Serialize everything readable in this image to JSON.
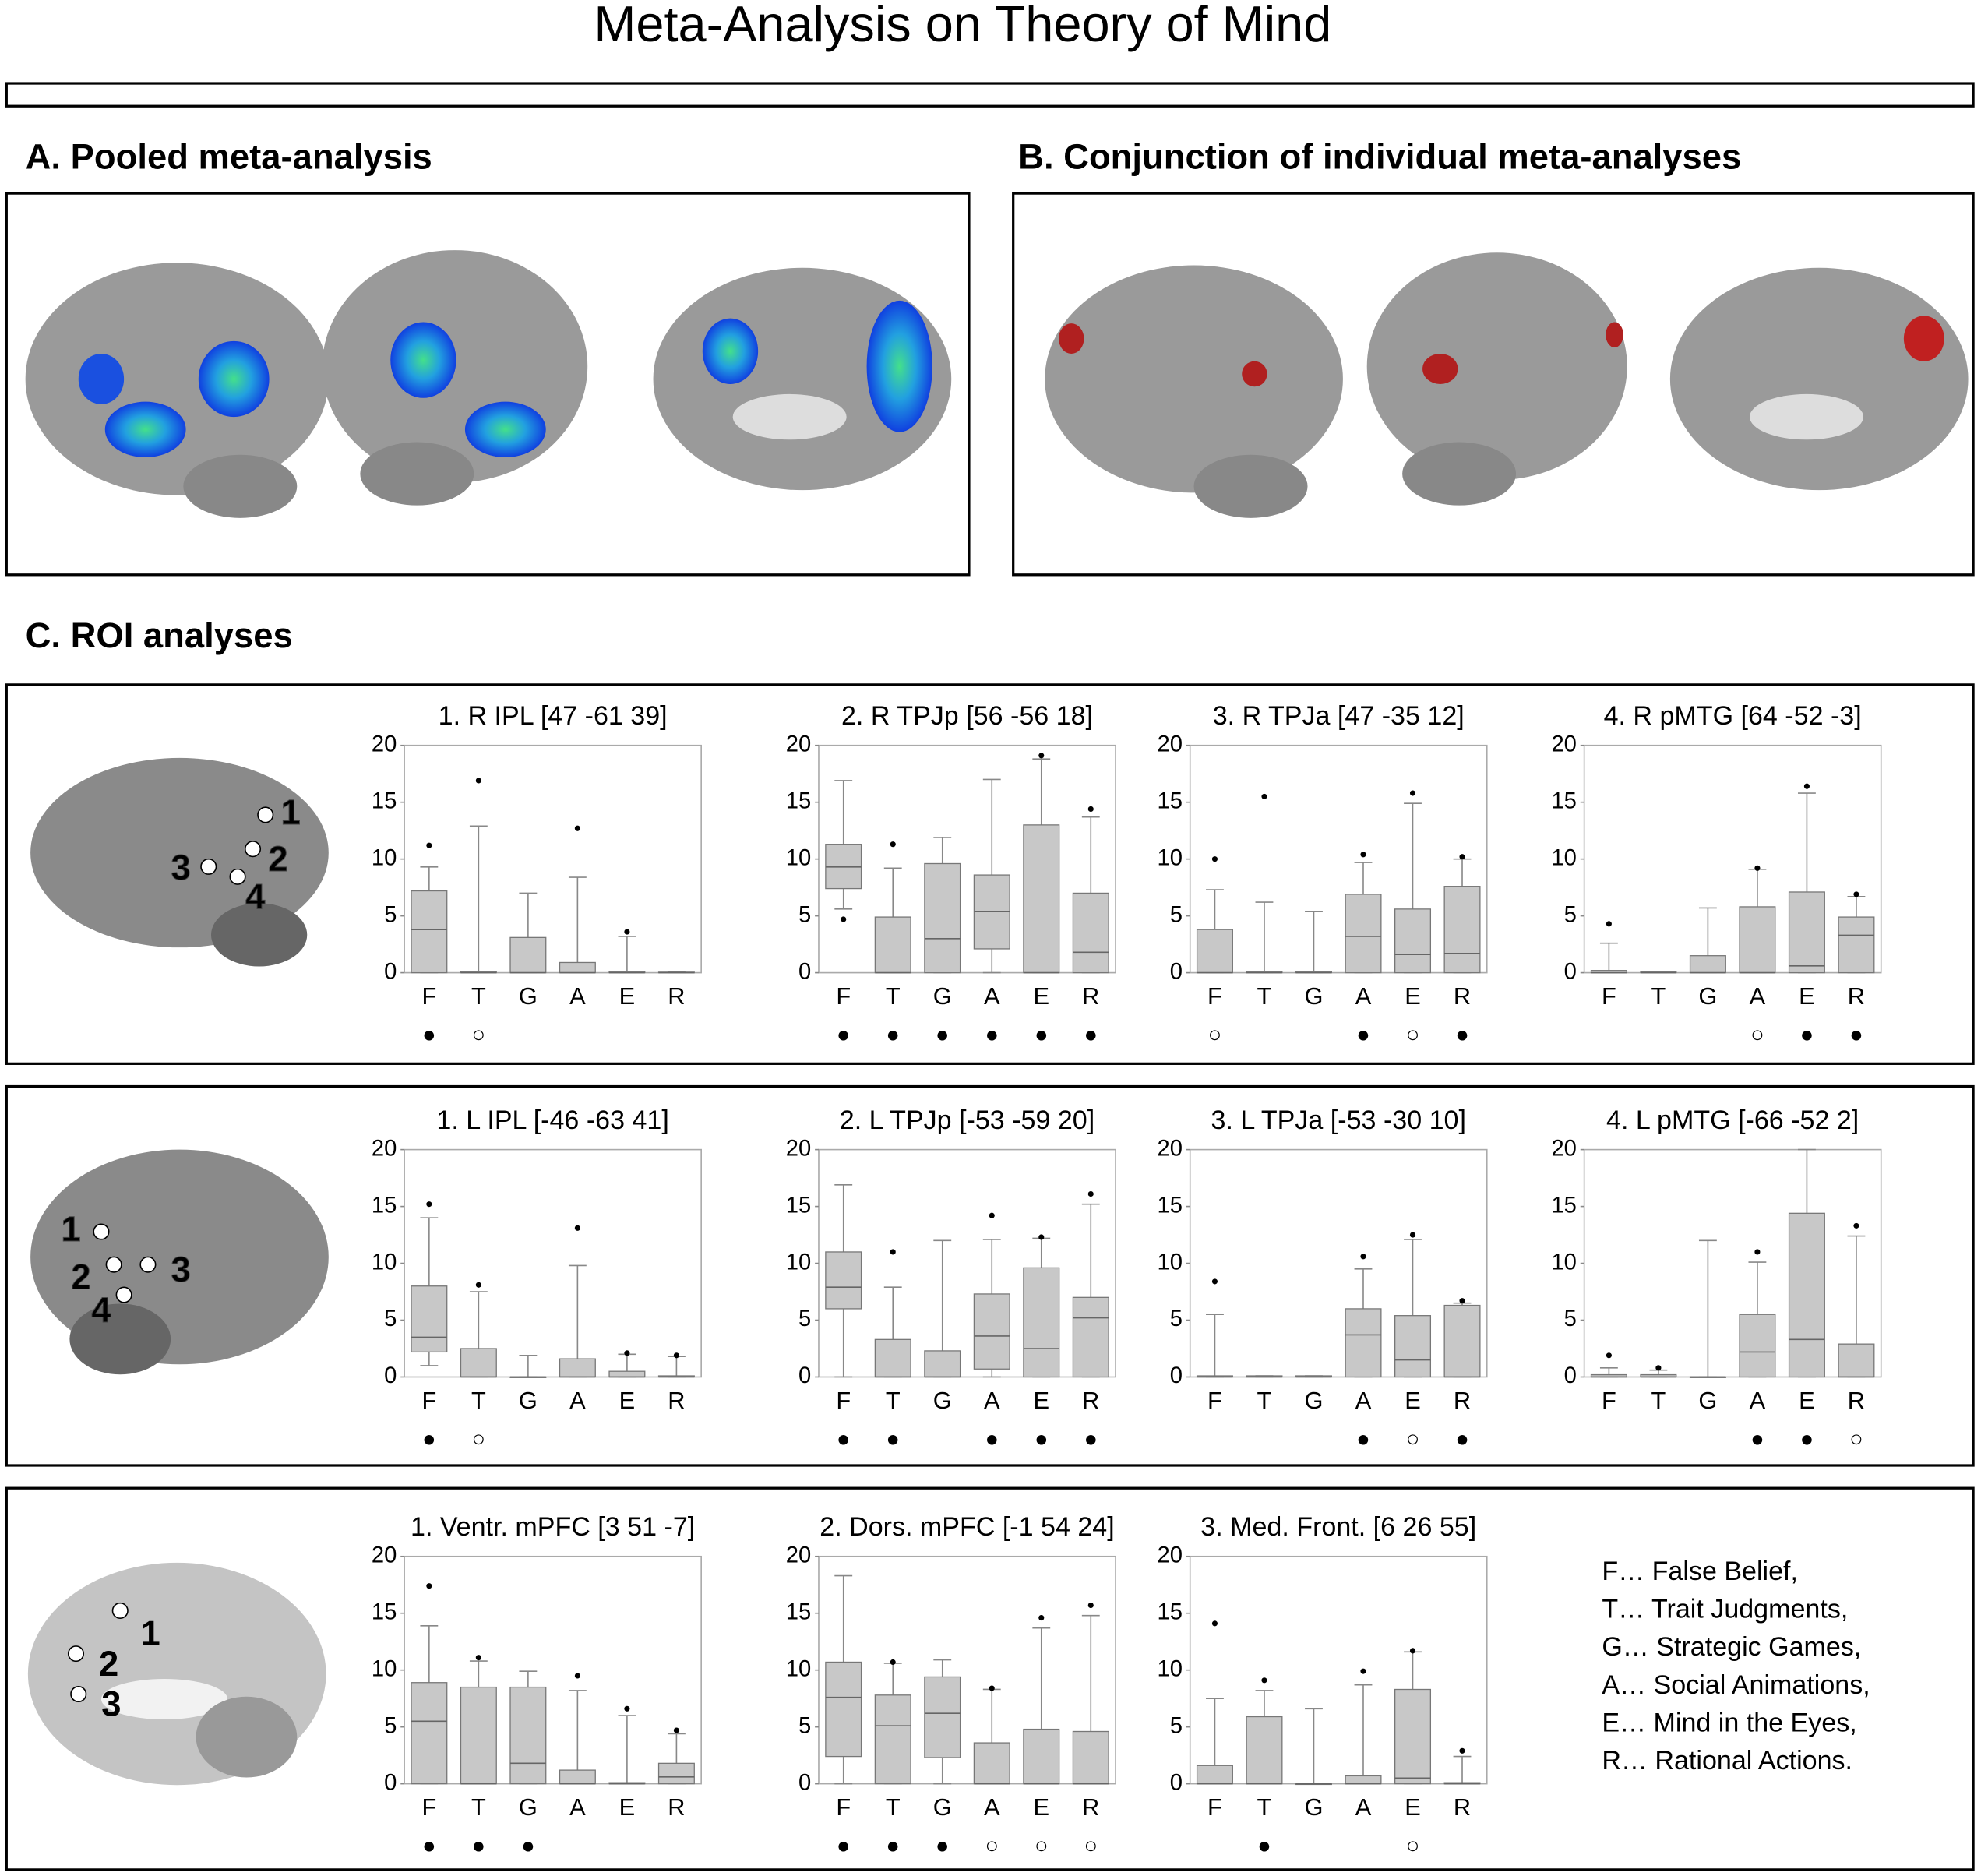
{
  "title": "Meta-Analysis on Theory of Mind",
  "panels": {
    "a": "A. Pooled meta-analysis",
    "b": "B. Conjunction of individual meta-analyses",
    "c": "C. ROI analyses"
  },
  "rows": [
    {
      "brain_labels": [
        "1",
        "2",
        "3",
        "4"
      ]
    },
    {
      "brain_labels": [
        "1",
        "2",
        "3",
        "4"
      ]
    },
    {
      "brain_labels": [
        "1",
        "2",
        "3"
      ]
    }
  ],
  "legend": [
    "F… False Belief,",
    "T… Trait Judgments,",
    "G… Strategic Games,",
    "A… Social Animations,",
    "E… Mind in the Eyes,",
    "R… Rational Actions."
  ],
  "chart_data": [
    {
      "type": "box",
      "title": "1. R IPL [47 -61 39]",
      "categories": [
        "F",
        "T",
        "G",
        "A",
        "E",
        "R"
      ],
      "color": "#c8c8c8",
      "ylim": [
        0,
        20
      ],
      "yticks": [
        0,
        5,
        10,
        15,
        20
      ],
      "whisker_low": [
        0,
        0,
        0,
        0,
        0,
        0
      ],
      "q1": [
        0,
        0,
        0,
        0,
        0,
        0
      ],
      "median": [
        3.8,
        0,
        0,
        0,
        0,
        0
      ],
      "q3": [
        7.2,
        0.1,
        3.1,
        0.9,
        0.1,
        0.05
      ],
      "whisker_high": [
        9.3,
        12.9,
        7.0,
        8.4,
        3.2,
        0.05
      ],
      "outliers": [
        11.2,
        16.9,
        null,
        12.7,
        3.6,
        null
      ],
      "markers": [
        "●",
        "○",
        null,
        null,
        null,
        null
      ]
    },
    {
      "type": "box",
      "title": "2. R TPJp [56 -56 18]",
      "categories": [
        "F",
        "T",
        "G",
        "A",
        "E",
        "R"
      ],
      "color": "#c8c8c8",
      "ylim": [
        0,
        20
      ],
      "yticks": [
        0,
        5,
        10,
        15,
        20
      ],
      "whisker_low": [
        5.6,
        0,
        0,
        0,
        0,
        0
      ],
      "q1": [
        7.4,
        0,
        0,
        2.1,
        0,
        0
      ],
      "median": [
        9.3,
        0,
        3.0,
        5.4,
        0,
        1.8
      ],
      "q3": [
        11.3,
        4.9,
        9.6,
        8.6,
        13.0,
        7.0
      ],
      "whisker_high": [
        16.9,
        9.2,
        11.9,
        17.0,
        18.8,
        13.7
      ],
      "outliers": [
        4.7,
        11.3,
        null,
        null,
        19.1,
        14.4
      ],
      "markers": [
        "●",
        "●",
        "●",
        "●",
        "●",
        "●"
      ]
    },
    {
      "type": "box",
      "title": "3. R TPJa [47 -35 12]",
      "categories": [
        "F",
        "T",
        "G",
        "A",
        "E",
        "R"
      ],
      "color": "#c8c8c8",
      "ylim": [
        0,
        20
      ],
      "yticks": [
        0,
        5,
        10,
        15,
        20
      ],
      "whisker_low": [
        0,
        0,
        0,
        0,
        0,
        0
      ],
      "q1": [
        0,
        0,
        0,
        0,
        0,
        0
      ],
      "median": [
        0,
        0,
        0,
        3.2,
        1.6,
        1.7
      ],
      "q3": [
        3.8,
        0.1,
        0.1,
        6.9,
        5.6,
        7.6
      ],
      "whisker_high": [
        7.3,
        6.2,
        5.4,
        9.7,
        14.9,
        10.0
      ],
      "outliers": [
        10.0,
        15.5,
        null,
        10.4,
        15.8,
        10.2
      ],
      "markers": [
        "○",
        null,
        null,
        "●",
        "○",
        "●"
      ]
    },
    {
      "type": "box",
      "title": "4. R pMTG [64 -52 -3]",
      "categories": [
        "F",
        "T",
        "G",
        "A",
        "E",
        "R"
      ],
      "color": "#c8c8c8",
      "ylim": [
        0,
        20
      ],
      "yticks": [
        0,
        5,
        10,
        15,
        20
      ],
      "whisker_low": [
        0,
        0,
        0,
        0,
        0,
        0
      ],
      "q1": [
        0,
        0,
        0,
        0,
        0,
        0
      ],
      "median": [
        0,
        0,
        0,
        0,
        0.6,
        3.3
      ],
      "q3": [
        0.2,
        0.1,
        1.5,
        5.8,
        7.1,
        4.9
      ],
      "whisker_high": [
        2.6,
        0.1,
        5.7,
        9.1,
        15.8,
        6.7
      ],
      "outliers": [
        4.3,
        null,
        null,
        9.2,
        16.4,
        6.9
      ],
      "markers": [
        null,
        null,
        null,
        "○",
        "●",
        "●"
      ]
    },
    {
      "type": "box",
      "title": "1. L IPL [-46 -63 41]",
      "categories": [
        "F",
        "T",
        "G",
        "A",
        "E",
        "R"
      ],
      "color": "#c8c8c8",
      "ylim": [
        0,
        20
      ],
      "yticks": [
        0,
        5,
        10,
        15,
        20
      ],
      "whisker_low": [
        1.0,
        0,
        0,
        0,
        0,
        0
      ],
      "q1": [
        2.2,
        0,
        0,
        0,
        0,
        0
      ],
      "median": [
        3.5,
        0,
        0,
        0,
        0,
        0
      ],
      "q3": [
        8.0,
        2.5,
        0,
        1.6,
        0.5,
        0.1
      ],
      "whisker_high": [
        14.0,
        7.5,
        1.9,
        9.8,
        2.0,
        1.8
      ],
      "outliers": [
        15.2,
        8.1,
        null,
        13.1,
        2.1,
        1.9
      ],
      "markers": [
        "●",
        "○",
        null,
        null,
        null,
        null
      ]
    },
    {
      "type": "box",
      "title": "2. L TPJp [-53 -59 20]",
      "categories": [
        "F",
        "T",
        "G",
        "A",
        "E",
        "R"
      ],
      "color": "#c8c8c8",
      "ylim": [
        0,
        20
      ],
      "yticks": [
        0,
        5,
        10,
        15,
        20
      ],
      "whisker_low": [
        0,
        0,
        0,
        0,
        0,
        0
      ],
      "q1": [
        6.0,
        0,
        0,
        0.7,
        0,
        0
      ],
      "median": [
        7.9,
        0,
        0,
        3.6,
        2.5,
        5.2
      ],
      "q3": [
        11.0,
        3.3,
        2.3,
        7.3,
        9.6,
        7.0
      ],
      "whisker_high": [
        16.9,
        7.9,
        12.0,
        12.1,
        12.2,
        15.2
      ],
      "outliers": [
        null,
        11.0,
        null,
        14.2,
        12.3,
        16.1
      ],
      "markers": [
        "●",
        "●",
        null,
        "●",
        "●",
        "●"
      ]
    },
    {
      "type": "box",
      "title": "3. L TPJa [-53 -30 10]",
      "categories": [
        "F",
        "T",
        "G",
        "A",
        "E",
        "R"
      ],
      "color": "#c8c8c8",
      "ylim": [
        0,
        20
      ],
      "yticks": [
        0,
        5,
        10,
        15,
        20
      ],
      "whisker_low": [
        0,
        0,
        0,
        0,
        0,
        0
      ],
      "q1": [
        0,
        0,
        0,
        0,
        0,
        0
      ],
      "median": [
        0,
        0,
        0,
        3.7,
        1.5,
        0
      ],
      "q3": [
        0.1,
        0.1,
        0.1,
        6.0,
        5.4,
        6.3
      ],
      "whisker_high": [
        5.5,
        0.1,
        0.1,
        9.5,
        12.1,
        6.5
      ],
      "outliers": [
        8.4,
        null,
        null,
        10.6,
        12.5,
        6.7
      ],
      "markers": [
        null,
        null,
        null,
        "●",
        "○",
        "●"
      ]
    },
    {
      "type": "box",
      "title": "4. L pMTG [-66 -52 2]",
      "categories": [
        "F",
        "T",
        "G",
        "A",
        "E",
        "R"
      ],
      "color": "#c8c8c8",
      "ylim": [
        0,
        20
      ],
      "yticks": [
        0,
        5,
        10,
        15,
        20
      ],
      "whisker_low": [
        0,
        0,
        0,
        0,
        0,
        0
      ],
      "q1": [
        0,
        0,
        0,
        0,
        0,
        0
      ],
      "median": [
        0,
        0,
        0,
        2.2,
        3.3,
        0
      ],
      "q3": [
        0.2,
        0.2,
        0,
        5.5,
        14.4,
        2.9
      ],
      "whisker_high": [
        0.8,
        0.6,
        12.0,
        10.1,
        20.0,
        12.4
      ],
      "outliers": [
        1.9,
        0.8,
        null,
        11.0,
        null,
        13.3
      ],
      "markers": [
        null,
        null,
        null,
        "●",
        "●",
        "○"
      ]
    },
    {
      "type": "box",
      "title": "1. Ventr. mPFC [3 51 -7]",
      "categories": [
        "F",
        "T",
        "G",
        "A",
        "E",
        "R"
      ],
      "color": "#c8c8c8",
      "ylim": [
        0,
        20
      ],
      "yticks": [
        0,
        5,
        10,
        15,
        20
      ],
      "whisker_low": [
        0,
        0,
        0,
        0,
        0,
        0
      ],
      "q1": [
        0,
        0,
        0,
        0,
        0,
        0
      ],
      "median": [
        5.5,
        0,
        1.8,
        0,
        0,
        0.6
      ],
      "q3": [
        8.9,
        8.5,
        8.5,
        1.2,
        0.1,
        1.8
      ],
      "whisker_high": [
        13.9,
        10.8,
        9.9,
        8.2,
        6.0,
        4.4
      ],
      "outliers": [
        17.4,
        11.1,
        null,
        9.5,
        6.6,
        4.7
      ],
      "markers": [
        "●",
        "●",
        "●",
        null,
        null,
        null
      ]
    },
    {
      "type": "box",
      "title": "2. Dors. mPFC [-1 54 24]",
      "categories": [
        "F",
        "T",
        "G",
        "A",
        "E",
        "R"
      ],
      "color": "#c8c8c8",
      "ylim": [
        0,
        20
      ],
      "yticks": [
        0,
        5,
        10,
        15,
        20
      ],
      "whisker_low": [
        0,
        0,
        0,
        0,
        0,
        0
      ],
      "q1": [
        2.4,
        0,
        2.3,
        0,
        0,
        0
      ],
      "median": [
        7.6,
        5.1,
        6.2,
        0,
        0,
        0
      ],
      "q3": [
        10.7,
        7.8,
        9.4,
        3.6,
        4.8,
        4.6
      ],
      "whisker_high": [
        18.3,
        10.6,
        10.9,
        8.3,
        13.7,
        14.8
      ],
      "outliers": [
        null,
        10.7,
        null,
        8.4,
        14.6,
        15.7
      ],
      "markers": [
        "●",
        "●",
        "●",
        "○",
        "○",
        "○"
      ]
    },
    {
      "type": "box",
      "title": "3. Med. Front.  [6 26 55]",
      "categories": [
        "F",
        "T",
        "G",
        "A",
        "E",
        "R"
      ],
      "color": "#c8c8c8",
      "ylim": [
        0,
        20
      ],
      "yticks": [
        0,
        5,
        10,
        15,
        20
      ],
      "whisker_low": [
        0,
        0,
        0,
        0,
        0,
        0
      ],
      "q1": [
        0,
        0,
        0,
        0,
        0,
        0
      ],
      "median": [
        0,
        0,
        0,
        0,
        0.5,
        0
      ],
      "q3": [
        1.6,
        5.9,
        0,
        0.7,
        8.3,
        0.1
      ],
      "whisker_high": [
        7.5,
        8.2,
        6.6,
        8.7,
        11.6,
        2.4
      ],
      "outliers": [
        14.1,
        9.1,
        null,
        9.9,
        11.7,
        2.9
      ],
      "markers": [
        null,
        "●",
        null,
        null,
        "○",
        null
      ]
    }
  ]
}
